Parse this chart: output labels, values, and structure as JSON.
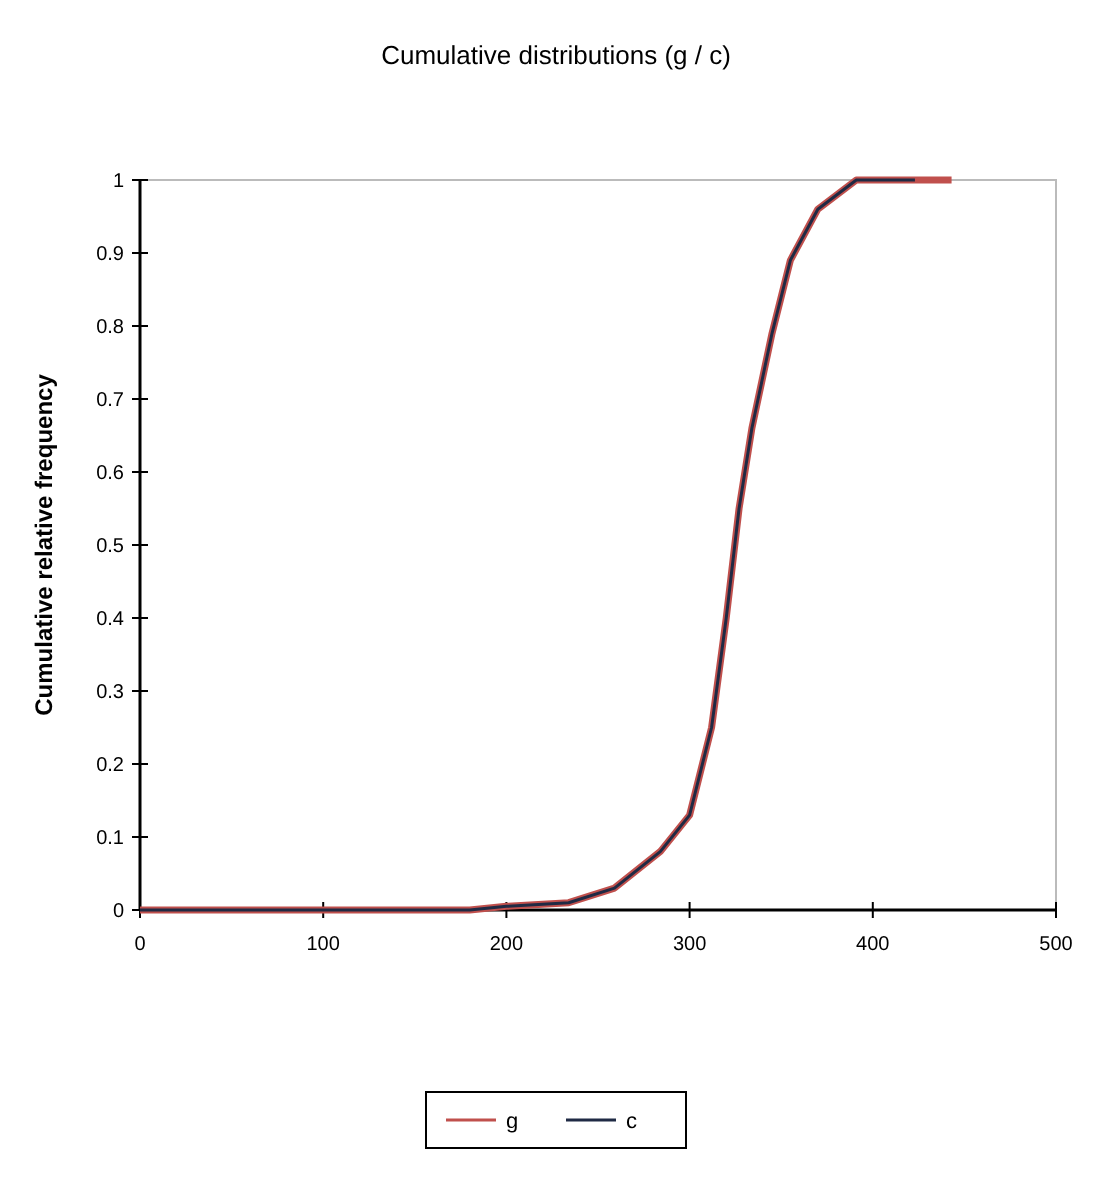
{
  "chart_data": {
    "type": "line",
    "title": "Cumulative distributions (g / c)",
    "ylabel": "Cumulative relative frequency",
    "xlim": [
      0,
      500
    ],
    "xticks": [
      0,
      100,
      200,
      300,
      400,
      500
    ],
    "ylim": [
      0,
      1
    ],
    "yticks": [
      0,
      0.1,
      0.2,
      0.3,
      0.4,
      0.5,
      0.6,
      0.7,
      0.8,
      0.9,
      1
    ],
    "grid": false,
    "legend": "bottom",
    "marker": "none",
    "line_style": "solid",
    "series": [
      {
        "name": "g",
        "color": "#c0504d",
        "x": [
          0,
          180,
          200,
          234,
          259,
          284,
          300,
          312,
          320,
          327,
          334,
          345,
          355,
          370,
          391,
          443
        ],
        "values": [
          0,
          0,
          0.005,
          0.01,
          0.03,
          0.08,
          0.13,
          0.25,
          0.4,
          0.55,
          0.66,
          0.79,
          0.89,
          0.96,
          1,
          1
        ]
      },
      {
        "name": "c",
        "color": "#1f2a44",
        "x": [
          0,
          180,
          200,
          234,
          259,
          284,
          300,
          312,
          320,
          327,
          334,
          345,
          355,
          370,
          391,
          423
        ],
        "values": [
          0,
          0,
          0.005,
          0.01,
          0.03,
          0.08,
          0.13,
          0.25,
          0.4,
          0.55,
          0.66,
          0.79,
          0.89,
          0.96,
          1,
          1
        ]
      }
    ]
  }
}
